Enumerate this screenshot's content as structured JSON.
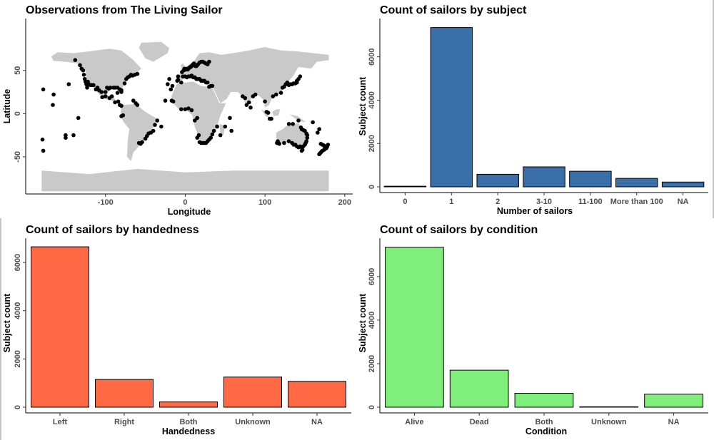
{
  "chart_data": [
    {
      "id": "map",
      "type": "scatter",
      "title": "Observations from The Living Sailor",
      "xlabel": "Longitude",
      "ylabel": "Latitude",
      "xlim": [
        -200,
        210
      ],
      "ylim": [
        -93,
        110
      ],
      "xticks": [
        -100,
        0,
        100,
        200
      ],
      "yticks": [
        -50,
        0,
        50
      ],
      "grid": false,
      "points": [
        [
          -178,
          28
        ],
        [
          -150,
          -25
        ],
        [
          -166,
          10
        ],
        [
          -165,
          22
        ],
        [
          -150,
          -28
        ],
        [
          -146,
          34
        ],
        [
          -140,
          -25
        ],
        [
          -138,
          62
        ],
        [
          -134,
          -5
        ],
        [
          -132,
          56
        ],
        [
          -130,
          52
        ],
        [
          -128,
          50
        ],
        [
          -127,
          45
        ],
        [
          -126,
          40
        ],
        [
          -125,
          37
        ],
        [
          -124,
          34
        ],
        [
          -123,
          30
        ],
        [
          -122,
          37
        ],
        [
          -121,
          34
        ],
        [
          -119,
          33
        ],
        [
          -117,
          33
        ],
        [
          -115,
          33
        ],
        [
          -112,
          28
        ],
        [
          -110,
          30
        ],
        [
          -108,
          27
        ],
        [
          -105,
          25
        ],
        [
          -100,
          25
        ],
        [
          -98,
          30
        ],
        [
          -96,
          29
        ],
        [
          -94,
          30
        ],
        [
          -90,
          30
        ],
        [
          -88,
          30
        ],
        [
          -85,
          30
        ],
        [
          -82,
          28
        ],
        [
          -80,
          27
        ],
        [
          -80,
          25
        ],
        [
          -76,
          35
        ],
        [
          -74,
          40
        ],
        [
          -72,
          42
        ],
        [
          -70,
          43
        ],
        [
          -68,
          45
        ],
        [
          -66,
          44
        ],
        [
          -63,
          45
        ],
        [
          -60,
          46
        ],
        [
          -85,
          24
        ],
        [
          -92,
          20
        ],
        [
          -95,
          18
        ],
        [
          -100,
          20
        ],
        [
          -104,
          19
        ],
        [
          -82,
          10
        ],
        [
          -80,
          9
        ],
        [
          -78,
          -2
        ],
        [
          -80,
          -3
        ],
        [
          -58,
          -34
        ],
        [
          -56,
          -35
        ],
        [
          -54,
          -33
        ],
        [
          -50,
          -29
        ],
        [
          -48,
          -26
        ],
        [
          -46,
          -23
        ],
        [
          -43,
          -22
        ],
        [
          -40,
          -20
        ],
        [
          -38,
          -13
        ],
        [
          -35,
          -8
        ],
        [
          -60,
          10
        ],
        [
          -62,
          12
        ],
        [
          -65,
          15
        ],
        [
          -88,
          13
        ],
        [
          -84,
          14
        ],
        [
          -30,
          -15
        ],
        [
          -25,
          15
        ],
        [
          -18,
          28
        ],
        [
          -16,
          32
        ],
        [
          -20,
          40
        ],
        [
          -22,
          34
        ],
        [
          -10,
          38
        ],
        [
          -9,
          39
        ],
        [
          -9,
          43
        ],
        [
          -5,
          36
        ],
        [
          -4,
          48
        ],
        [
          -2,
          50
        ],
        [
          -1,
          52
        ],
        [
          0,
          51
        ],
        [
          1,
          51
        ],
        [
          2,
          52
        ],
        [
          3,
          51
        ],
        [
          4,
          52
        ],
        [
          5,
          53
        ],
        [
          6,
          54
        ],
        [
          7,
          54
        ],
        [
          8,
          55
        ],
        [
          9,
          56
        ],
        [
          10,
          57
        ],
        [
          11,
          58
        ],
        [
          12,
          56
        ],
        [
          13,
          55
        ],
        [
          14,
          55
        ],
        [
          15,
          56
        ],
        [
          16,
          57
        ],
        [
          18,
          59
        ],
        [
          20,
          60
        ],
        [
          22,
          60
        ],
        [
          24,
          59
        ],
        [
          26,
          58
        ],
        [
          28,
          57
        ],
        [
          30,
          60
        ],
        [
          -3,
          43
        ],
        [
          0,
          43
        ],
        [
          2,
          42
        ],
        [
          4,
          43
        ],
        [
          6,
          43
        ],
        [
          8,
          44
        ],
        [
          10,
          42
        ],
        [
          12,
          42
        ],
        [
          14,
          40
        ],
        [
          16,
          40
        ],
        [
          18,
          40
        ],
        [
          20,
          38
        ],
        [
          22,
          38
        ],
        [
          24,
          38
        ],
        [
          26,
          36
        ],
        [
          28,
          36
        ],
        [
          30,
          31
        ],
        [
          32,
          32
        ],
        [
          34,
          32
        ],
        [
          -15,
          14
        ],
        [
          -17,
          15
        ],
        [
          8,
          4
        ],
        [
          4,
          6
        ],
        [
          0,
          5
        ],
        [
          -5,
          5
        ],
        [
          15,
          -5
        ],
        [
          12,
          -8
        ],
        [
          17,
          -25
        ],
        [
          15,
          -28
        ],
        [
          18,
          -33
        ],
        [
          20,
          -34
        ],
        [
          22,
          -34
        ],
        [
          24,
          -34
        ],
        [
          26,
          -34
        ],
        [
          28,
          -32
        ],
        [
          30,
          -30
        ],
        [
          32,
          -28
        ],
        [
          34,
          -24
        ],
        [
          36,
          -20
        ],
        [
          40,
          -15
        ],
        [
          44,
          -25
        ],
        [
          50,
          -15
        ],
        [
          56,
          -5
        ],
        [
          58,
          -20
        ],
        [
          72,
          20
        ],
        [
          75,
          18
        ],
        [
          77,
          10
        ],
        [
          80,
          13
        ],
        [
          82,
          7
        ],
        [
          85,
          20
        ],
        [
          88,
          22
        ],
        [
          100,
          14
        ],
        [
          102,
          2
        ],
        [
          104,
          1
        ],
        [
          106,
          -6
        ],
        [
          108,
          -6
        ],
        [
          110,
          20
        ],
        [
          114,
          22
        ],
        [
          120,
          24
        ],
        [
          122,
          30
        ],
        [
          124,
          31
        ],
        [
          126,
          34
        ],
        [
          128,
          36
        ],
        [
          130,
          33
        ],
        [
          132,
          34
        ],
        [
          134,
          34
        ],
        [
          136,
          35
        ],
        [
          138,
          35
        ],
        [
          140,
          36
        ],
        [
          140,
          38
        ],
        [
          142,
          40
        ],
        [
          144,
          43
        ],
        [
          135,
          -12
        ],
        [
          130,
          -12
        ],
        [
          116,
          -32
        ],
        [
          115,
          -34
        ],
        [
          118,
          -35
        ],
        [
          124,
          -34
        ],
        [
          130,
          -32
        ],
        [
          134,
          -34
        ],
        [
          136,
          -36
        ],
        [
          138,
          -36
        ],
        [
          140,
          -38
        ],
        [
          142,
          -39
        ],
        [
          144,
          -38
        ],
        [
          146,
          -39
        ],
        [
          148,
          -38
        ],
        [
          150,
          -36
        ],
        [
          151,
          -34
        ],
        [
          152,
          -32
        ],
        [
          153,
          -28
        ],
        [
          153,
          -25
        ],
        [
          152,
          -23
        ],
        [
          150,
          -20
        ],
        [
          148,
          -19
        ],
        [
          146,
          -18
        ],
        [
          145,
          -16
        ],
        [
          147,
          -42
        ],
        [
          146,
          -43
        ],
        [
          170,
          -35
        ],
        [
          172,
          -36
        ],
        [
          174,
          -37
        ],
        [
          175,
          -38
        ],
        [
          176,
          -39
        ],
        [
          177,
          -40
        ],
        [
          175,
          -41
        ],
        [
          174,
          -42
        ],
        [
          172,
          -43
        ],
        [
          171,
          -44
        ],
        [
          170,
          -45
        ],
        [
          169,
          -46
        ],
        [
          168,
          -47
        ],
        [
          176,
          -38
        ],
        [
          178,
          -38
        ],
        [
          179,
          -36
        ],
        [
          166,
          -22
        ],
        [
          168,
          -18
        ],
        [
          160,
          -10
        ],
        [
          142,
          -8
        ],
        [
          -178,
          -43
        ],
        [
          -179,
          -30
        ]
      ]
    },
    {
      "id": "subject",
      "type": "bar",
      "title": "Count of sailors by subject",
      "xlabel": "Number of sailors",
      "ylabel": "Subject count",
      "categories": [
        "0",
        "1",
        "2",
        "3-10",
        "11-100",
        "More than 100",
        "NA"
      ],
      "values": [
        30,
        7350,
        580,
        920,
        720,
        390,
        220
      ],
      "yticks": [
        0,
        2000,
        4000,
        6000
      ],
      "ylim": [
        0,
        7700
      ],
      "color": "#3a6ea8",
      "grid": false
    },
    {
      "id": "handedness",
      "type": "bar",
      "title": "Count of sailors by handedness",
      "xlabel": "Handedness",
      "ylabel": "Subject count",
      "categories": [
        "Left",
        "Right",
        "Both",
        "Unknown",
        "NA"
      ],
      "values": [
        6650,
        1150,
        220,
        1250,
        1070
      ],
      "yticks": [
        0,
        2000,
        4000,
        6000
      ],
      "ylim": [
        0,
        6950
      ],
      "color": "#ff6a44",
      "grid": false
    },
    {
      "id": "condition",
      "type": "bar",
      "title": "Count of sailors by condition",
      "xlabel": "Condition",
      "ylabel": "Subject count",
      "categories": [
        "Alive",
        "Dead",
        "Both",
        "Unknown",
        "NA"
      ],
      "values": [
        7350,
        1700,
        640,
        20,
        600
      ],
      "yticks": [
        0,
        2000,
        4000,
        6000
      ],
      "ylim": [
        0,
        7700
      ],
      "color": "#80ee7b",
      "grid": false
    }
  ],
  "colors": {
    "land": "#c9c9c9",
    "points": "#000000",
    "axis": "#000000"
  }
}
